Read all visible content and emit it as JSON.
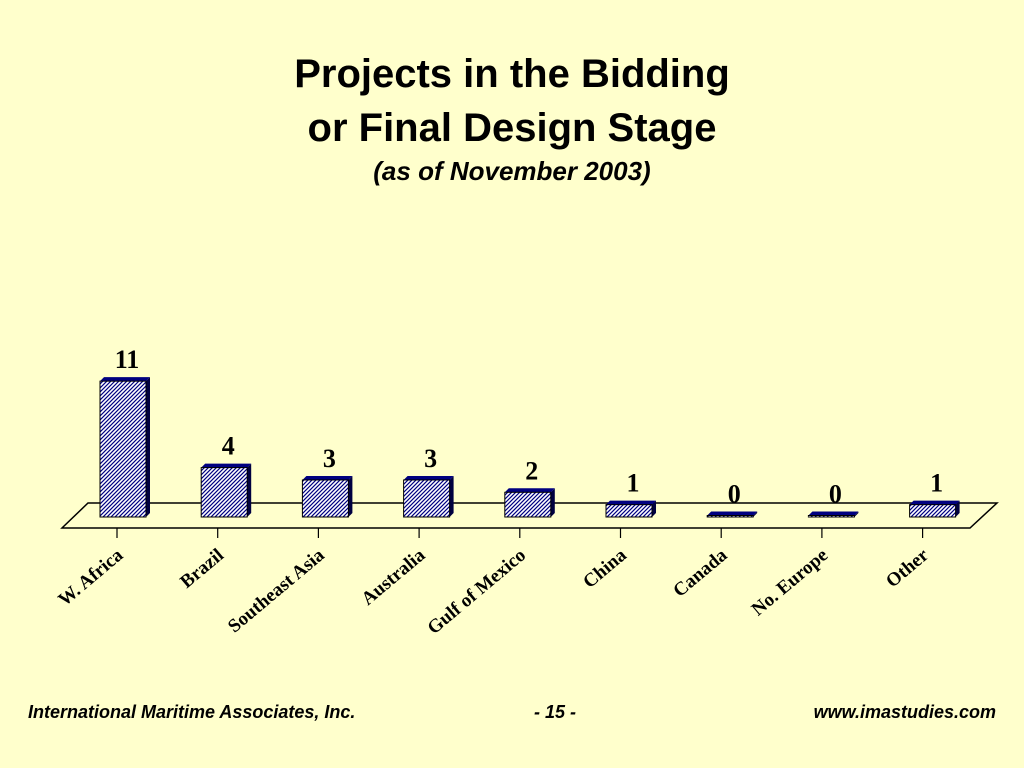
{
  "slide": {
    "title_line1": "Projects in the Bidding",
    "title_line2": "or Final Design Stage",
    "subtitle": "(as of November 2003)"
  },
  "footer": {
    "left": "International Maritime Associates, Inc.",
    "center": "- 15 -",
    "right": "www.imastudies.com"
  },
  "colors": {
    "background": "#FFFFCC",
    "bar_fill": "#FFFFFF",
    "bar_hatch": "#000080",
    "bar_edge": "#000040"
  },
  "chart_data": {
    "type": "bar",
    "categories": [
      "W. Africa",
      "Brazil",
      "Southeast Asia",
      "Australia",
      "Gulf of Mexico",
      "China",
      "Canada",
      "No. Europe",
      "Other"
    ],
    "values": [
      11,
      4,
      3,
      3,
      2,
      1,
      0,
      0,
      1
    ],
    "data_labels": [
      "11",
      "4",
      "3",
      "3",
      "2",
      "1",
      "0",
      "0",
      "1"
    ],
    "style": "3d-hatched",
    "grid": false,
    "legend": "none"
  }
}
